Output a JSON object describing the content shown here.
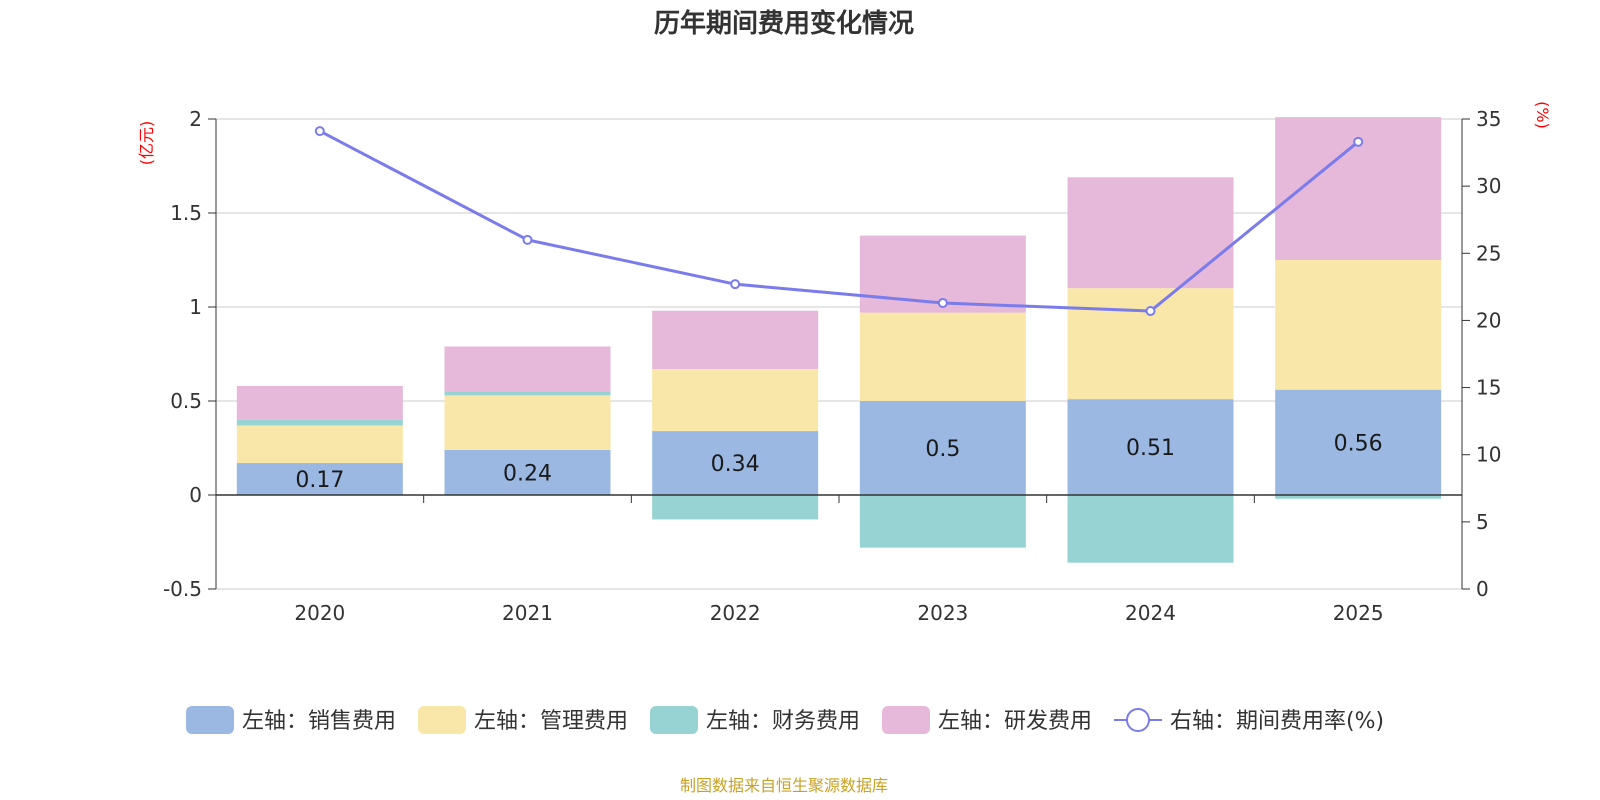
{
  "chart_data": {
    "type": "bar",
    "title": "历年期间费用变化情况",
    "categories": [
      "2020",
      "2021",
      "2022",
      "2023",
      "2024",
      "2025"
    ],
    "left_axis": {
      "unit_label": "(亿元)",
      "ylim": [
        -0.5,
        2
      ],
      "ticks": [
        -0.5,
        0,
        0.5,
        1,
        1.5,
        2
      ],
      "tick_labels": [
        "-0.5",
        "0",
        "0.5",
        "1",
        "1.5",
        "2"
      ]
    },
    "right_axis": {
      "unit_label": "(%)",
      "ylim": [
        0,
        35
      ],
      "ticks": [
        0,
        5,
        10,
        15,
        20,
        25,
        30,
        35
      ],
      "tick_labels": [
        "0",
        "5",
        "10",
        "15",
        "20",
        "25",
        "30",
        "35"
      ]
    },
    "series": [
      {
        "name": "左轴：销售费用",
        "kind": "bar",
        "axis": "left",
        "color": "#9bb8e2",
        "values": [
          0.17,
          0.24,
          0.34,
          0.5,
          0.51,
          0.56
        ],
        "labels": [
          "0.17",
          "0.24",
          "0.34",
          "0.5",
          "0.51",
          "0.56"
        ]
      },
      {
        "name": "左轴：管理费用",
        "kind": "bar",
        "axis": "left",
        "color": "#f8e7a8",
        "values": [
          0.2,
          0.29,
          0.33,
          0.47,
          0.59,
          0.69
        ]
      },
      {
        "name": "左轴：财务费用",
        "kind": "bar",
        "axis": "left",
        "color": "#97d3d3",
        "values": [
          0.03,
          0.02,
          -0.13,
          -0.28,
          -0.36,
          -0.02
        ]
      },
      {
        "name": "左轴：研发费用",
        "kind": "bar",
        "axis": "left",
        "color": "#e6b8d9",
        "values": [
          0.18,
          0.24,
          0.31,
          0.41,
          0.59,
          0.76
        ]
      },
      {
        "name": "右轴：期间费用率(%)",
        "kind": "line",
        "axis": "right",
        "color": "#7b7cec",
        "values": [
          34.1,
          26.0,
          22.7,
          21.3,
          20.7,
          33.3
        ]
      }
    ],
    "source": "制图数据来自恒生聚源数据库"
  },
  "colors": {
    "unit_label": "#ff0000",
    "source": "#c9a227",
    "grid": "#cccccc",
    "axis": "#333333"
  }
}
